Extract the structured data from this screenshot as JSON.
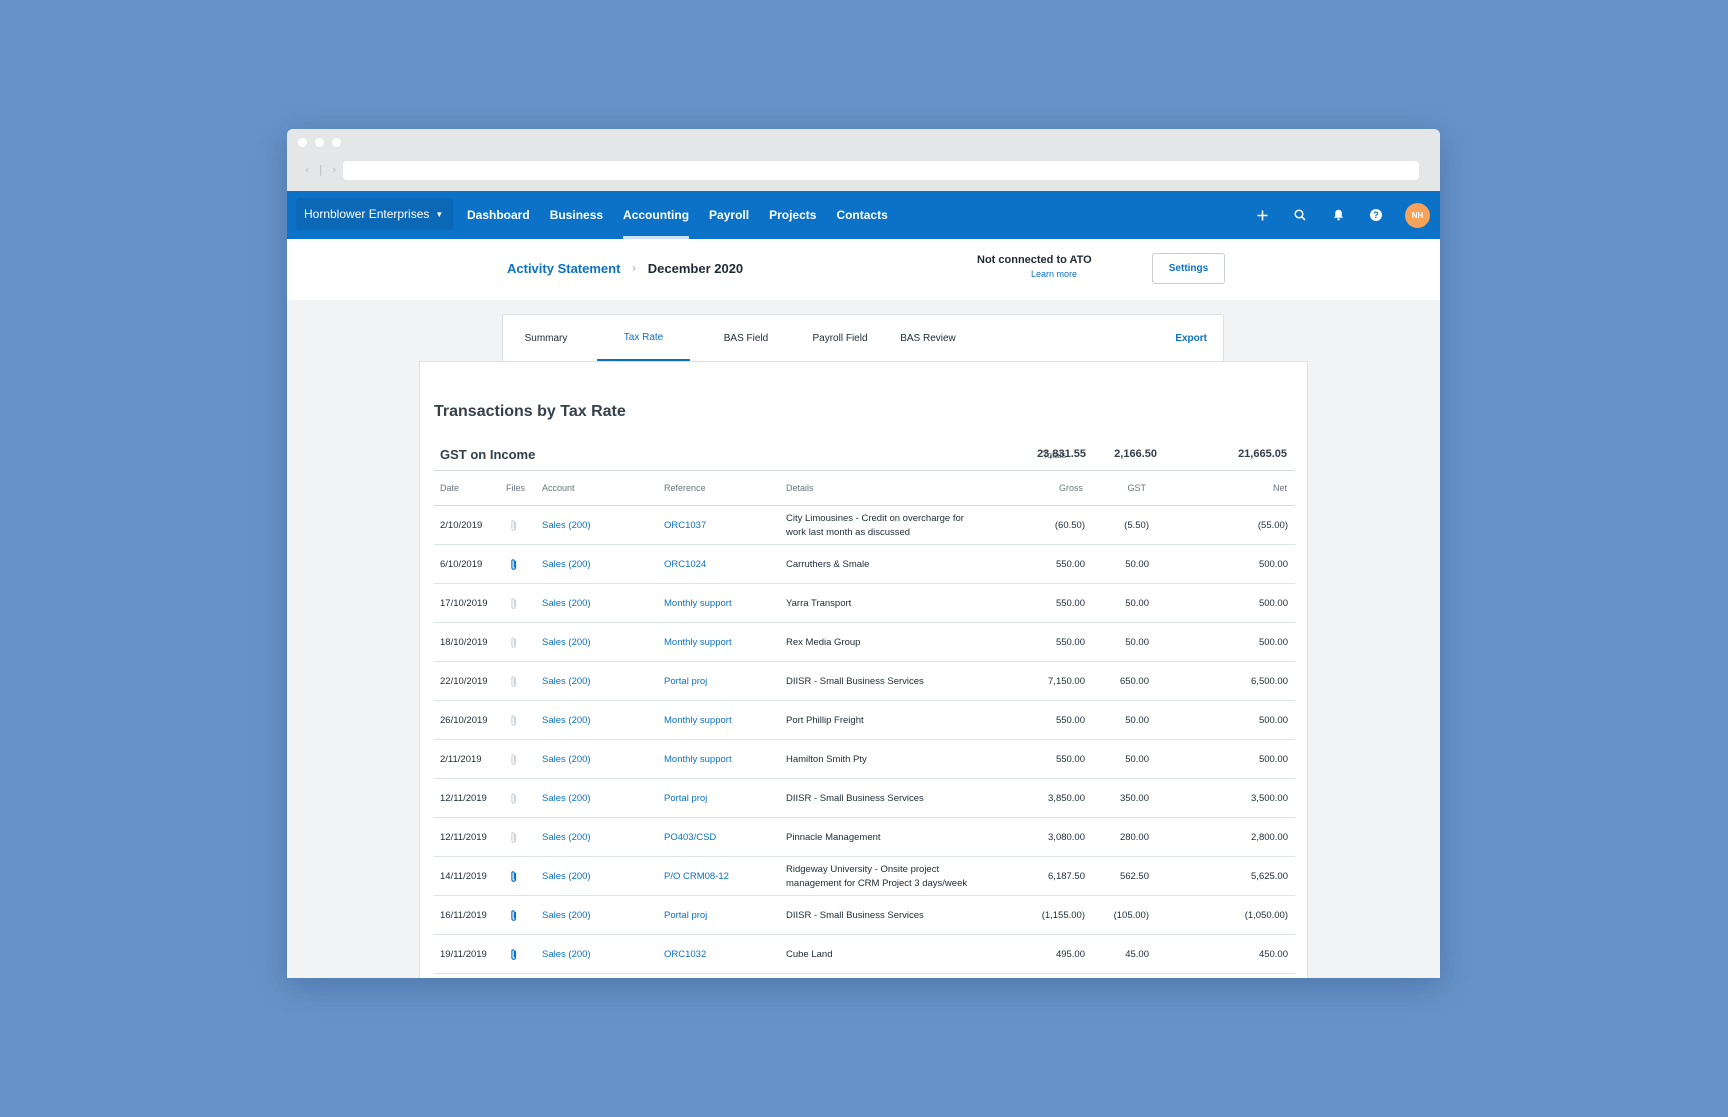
{
  "colors": {
    "brand": "#0b72c7",
    "background": "#6592c9",
    "avatar": "#f6a25a"
  },
  "browser": {
    "nav": "‹ | ›"
  },
  "topnav": {
    "org": "Hornblower Enterprises",
    "menu": [
      "Dashboard",
      "Business",
      "Accounting",
      "Payroll",
      "Projects",
      "Contacts"
    ],
    "active": "Accounting",
    "icons": [
      "plus-icon",
      "search-icon",
      "bell-icon",
      "help-icon"
    ],
    "help_glyph": "?",
    "avatar": "NH"
  },
  "header": {
    "crumb_link": "Activity Statement",
    "crumb_sep": "›",
    "crumb_current": "December 2020",
    "ato_status": "Not connected to ATO",
    "learn_more": "Learn more",
    "settings": "Settings"
  },
  "tabs": {
    "items": [
      "Summary",
      "Tax Rate",
      "BAS Field",
      "Payroll Field",
      "BAS Review"
    ],
    "active": "Tax Rate",
    "export": "Export"
  },
  "report": {
    "title": "Transactions by Tax Rate",
    "section": "GST on Income",
    "totals_label": "Totals",
    "totals": {
      "gross": "23,831.55",
      "gst": "2,166.50",
      "net": "21,665.05"
    },
    "columns": {
      "date": "Date",
      "files": "Files",
      "account": "Account",
      "reference": "Reference",
      "details": "Details",
      "gross": "Gross",
      "gst": "GST",
      "net": "Net"
    },
    "rows": [
      {
        "date": "2/10/2019",
        "file": false,
        "account": "Sales (200)",
        "reference": "ORC1037",
        "details": "City Limousines - Credit on overcharge for work last month as discussed",
        "gross": "(60.50)",
        "gst": "(5.50)",
        "net": "(55.00)"
      },
      {
        "date": "6/10/2019",
        "file": true,
        "account": "Sales (200)",
        "reference": "ORC1024",
        "details": "Carruthers & Smale",
        "gross": "550.00",
        "gst": "50.00",
        "net": "500.00"
      },
      {
        "date": "17/10/2019",
        "file": false,
        "account": "Sales (200)",
        "reference": "Monthly support",
        "details": "Yarra Transport",
        "gross": "550.00",
        "gst": "50.00",
        "net": "500.00"
      },
      {
        "date": "18/10/2019",
        "file": false,
        "account": "Sales (200)",
        "reference": "Monthly support",
        "details": "Rex Media Group",
        "gross": "550.00",
        "gst": "50.00",
        "net": "500.00"
      },
      {
        "date": "22/10/2019",
        "file": false,
        "account": "Sales (200)",
        "reference": "Portal proj",
        "details": "DIISR - Small Business Services",
        "gross": "7,150.00",
        "gst": "650.00",
        "net": "6,500.00"
      },
      {
        "date": "26/10/2019",
        "file": false,
        "account": "Sales (200)",
        "reference": "Monthly support",
        "details": "Port Phillip Freight",
        "gross": "550.00",
        "gst": "50.00",
        "net": "500.00"
      },
      {
        "date": "2/11/2019",
        "file": false,
        "account": "Sales (200)",
        "reference": "Monthly support",
        "details": "Hamilton Smith Pty",
        "gross": "550.00",
        "gst": "50.00",
        "net": "500.00"
      },
      {
        "date": "12/11/2019",
        "file": false,
        "account": "Sales (200)",
        "reference": "Portal proj",
        "details": "DIISR - Small Business Services",
        "gross": "3,850.00",
        "gst": "350.00",
        "net": "3,500.00"
      },
      {
        "date": "12/11/2019",
        "file": false,
        "account": "Sales (200)",
        "reference": "PO403/CSD",
        "details": "Pinnacle Management",
        "gross": "3,080.00",
        "gst": "280.00",
        "net": "2,800.00"
      },
      {
        "date": "14/11/2019",
        "file": true,
        "account": "Sales (200)",
        "reference": "P/O CRM08-12",
        "details": "Ridgeway University - Onsite project management for CRM Project 3 days/week",
        "gross": "6,187.50",
        "gst": "562.50",
        "net": "5,625.00"
      },
      {
        "date": "16/11/2019",
        "file": true,
        "account": "Sales (200)",
        "reference": "Portal proj",
        "details": "DIISR - Small Business Services",
        "gross": "(1,155.00)",
        "gst": "(105.00)",
        "net": "(1,050.00)"
      },
      {
        "date": "19/11/2019",
        "file": true,
        "account": "Sales (200)",
        "reference": "ORC1032",
        "details": "Cube Land",
        "gross": "495.00",
        "gst": "45.00",
        "net": "450.00"
      }
    ]
  }
}
